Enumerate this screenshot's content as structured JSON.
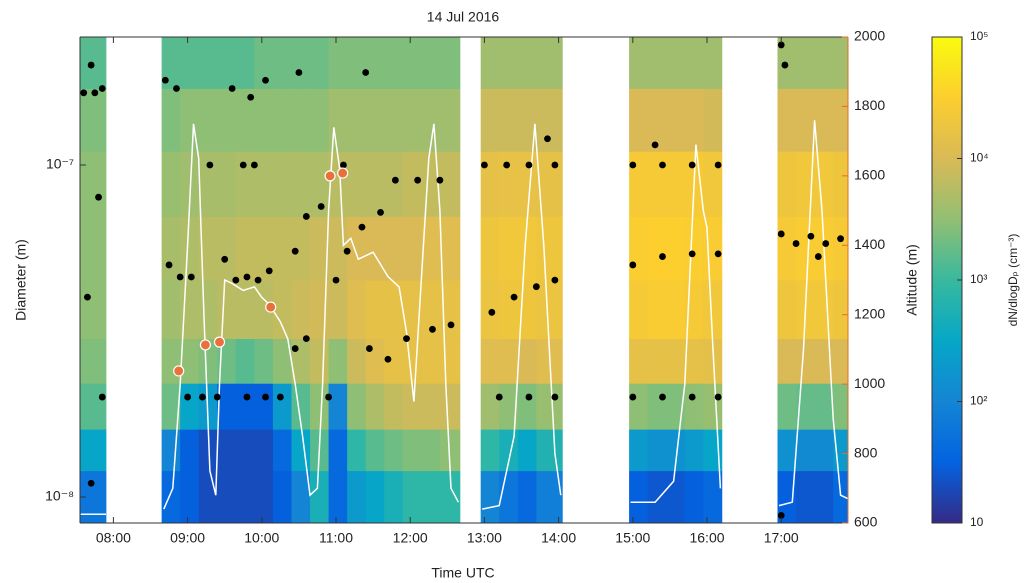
{
  "chart_data": {
    "type": "heatmap",
    "title": "14 Jul 2016",
    "xlabel": "Time UTC",
    "ylabel": "Diameter (m)",
    "y2label": "Altitude (m)",
    "colorbar_label": "dN/dlogDₚ (cm⁻³)",
    "ylabel_color": "#1e88d6",
    "y2label_color": "#e8692c",
    "xlim": [
      7.55,
      17.9
    ],
    "xticks": [
      {
        "value": 8,
        "label": "08:00"
      },
      {
        "value": 9,
        "label": "09:00"
      },
      {
        "value": 10,
        "label": "10:00"
      },
      {
        "value": 11,
        "label": "11:00"
      },
      {
        "value": 12,
        "label": "12:00"
      },
      {
        "value": 13,
        "label": "13:00"
      },
      {
        "value": 14,
        "label": "14:00"
      },
      {
        "value": 15,
        "label": "15:00"
      },
      {
        "value": 16,
        "label": "16:00"
      },
      {
        "value": 17,
        "label": "17:00"
      }
    ],
    "ylim": [
      8.35e-09,
      2.43e-07
    ],
    "y_scale": "log",
    "yticks": [
      {
        "value": 1e-08,
        "label": "10⁻⁸"
      },
      {
        "value": 1e-07,
        "label": "10⁻⁷"
      }
    ],
    "y2lim": [
      600,
      2000
    ],
    "y2ticks": [
      600,
      800,
      1000,
      1200,
      1400,
      1600,
      1800,
      2000
    ],
    "zlim": [
      10,
      100000
    ],
    "z_scale": "log",
    "zticks": [
      10,
      {
        "value": 100,
        "label": "10²"
      },
      {
        "value": 1000,
        "label": "10³"
      },
      {
        "value": 10000,
        "label": "10⁴"
      },
      {
        "value": 100000,
        "label": "10⁵"
      }
    ],
    "colormap": [
      "#352a87",
      "#0363e1",
      "#1485d4",
      "#06a7c6",
      "#38b99e",
      "#92bf73",
      "#d9ba56",
      "#fcce2e",
      "#f9fb0e"
    ],
    "x_edges": [
      7.55,
      7.9,
      8.65,
      8.9,
      9.15,
      9.4,
      9.65,
      9.9,
      10.15,
      10.4,
      10.65,
      10.9,
      11.15,
      11.4,
      11.65,
      11.9,
      12.15,
      12.4,
      12.67,
      12.95,
      13.2,
      13.45,
      13.7,
      14.05,
      14.95,
      15.2,
      15.45,
      15.7,
      15.95,
      16.2,
      16.95,
      17.2,
      17.45,
      17.7,
      17.9
    ],
    "y_edges": [
      8.35e-09,
      1.2e-08,
      1.6e-08,
      2.2e-08,
      3e-08,
      4.5e-08,
      7e-08,
      1.1e-07,
      1.7e-07,
      2.43e-07
    ],
    "z": [
      [
        60,
        300,
        1500,
        2500,
        3000,
        3000,
        3000,
        2500,
        1500
      ],
      null,
      [
        40,
        100,
        2000,
        3000,
        4000,
        4500,
        3500,
        2500,
        1500
      ],
      [
        30,
        30,
        300,
        3000,
        5000,
        5000,
        4000,
        3000,
        1500
      ],
      [
        20,
        20,
        200,
        2500,
        5000,
        6000,
        4500,
        3000,
        1500
      ],
      [
        20,
        20,
        30,
        2000,
        6000,
        6000,
        4500,
        3000,
        1500
      ],
      [
        20,
        20,
        30,
        1500,
        6000,
        7000,
        5000,
        3000,
        1500
      ],
      [
        20,
        20,
        30,
        2000,
        6000,
        7000,
        5000,
        3000,
        2000
      ],
      [
        30,
        40,
        200,
        3000,
        7000,
        7000,
        5000,
        3000,
        2000
      ],
      [
        100,
        300,
        1500,
        5000,
        8000,
        7000,
        5000,
        3000,
        2000
      ],
      [
        500,
        1500,
        3000,
        7000,
        9000,
        8000,
        5000,
        3000,
        2000
      ],
      [
        40,
        40,
        100,
        3000,
        8000,
        8000,
        6000,
        4000,
        2500
      ],
      [
        200,
        800,
        3000,
        8000,
        12000,
        10000,
        6000,
        4000,
        2500
      ],
      [
        300,
        1500,
        5000,
        12000,
        15000,
        10000,
        6000,
        4000,
        2500
      ],
      [
        500,
        2000,
        7000,
        15000,
        15000,
        10000,
        6000,
        4000,
        2500
      ],
      [
        800,
        2500,
        8000,
        15000,
        15000,
        10000,
        7000,
        4000,
        2500
      ],
      [
        800,
        2500,
        8000,
        15000,
        15000,
        12000,
        7000,
        4000,
        2500
      ],
      [
        800,
        3000,
        8000,
        15000,
        15000,
        12000,
        7000,
        4000,
        2500
      ],
      null,
      [
        100,
        800,
        4000,
        12000,
        18000,
        20000,
        15000,
        8000,
        4000
      ],
      [
        60,
        500,
        3000,
        12000,
        20000,
        22000,
        16000,
        8000,
        4000
      ],
      [
        40,
        300,
        2500,
        10000,
        20000,
        22000,
        16000,
        8000,
        4000
      ],
      [
        80,
        600,
        3500,
        12000,
        18000,
        20000,
        15000,
        8000,
        4000
      ],
      null,
      [
        30,
        200,
        3000,
        15000,
        25000,
        30000,
        25000,
        10000,
        4000
      ],
      [
        25,
        150,
        2500,
        15000,
        28000,
        32000,
        25000,
        10000,
        4000
      ],
      [
        25,
        150,
        2500,
        15000,
        28000,
        32000,
        25000,
        10000,
        4000
      ],
      [
        30,
        200,
        3000,
        15000,
        25000,
        30000,
        25000,
        10000,
        4000
      ],
      [
        40,
        300,
        3500,
        14000,
        22000,
        28000,
        22000,
        9000,
        4000
      ],
      null,
      [
        30,
        150,
        2000,
        10000,
        20000,
        25000,
        20000,
        10000,
        4000
      ],
      [
        25,
        120,
        1800,
        10000,
        22000,
        28000,
        22000,
        10000,
        4000
      ],
      [
        25,
        120,
        1800,
        10000,
        22000,
        28000,
        22000,
        10000,
        4000
      ],
      [
        40,
        200,
        2500,
        10000,
        20000,
        25000,
        20000,
        10000,
        4000
      ]
    ],
    "series": [
      {
        "type": "scatter",
        "color": "#000000",
        "x": [
          7.6,
          7.75,
          7.85,
          7.7,
          7.8,
          7.65,
          7.85,
          7.7,
          8.7,
          8.85,
          8.75,
          8.9,
          9.05,
          9.0,
          9.2,
          9.4,
          9.3,
          9.5,
          9.65,
          9.8,
          9.95,
          10.1,
          9.75,
          9.9,
          9.6,
          9.85,
          10.05,
          9.8,
          10.05,
          10.25,
          10.45,
          10.6,
          10.45,
          10.6,
          10.8,
          10.9,
          11.0,
          11.15,
          11.1,
          11.35,
          11.6,
          11.45,
          11.7,
          11.95,
          11.4,
          11.8,
          12.1,
          12.4,
          12.55,
          12.3,
          10.5,
          13.0,
          13.3,
          13.6,
          13.95,
          13.1,
          13.4,
          13.7,
          13.95,
          13.2,
          13.6,
          13.95,
          13.85,
          15.0,
          15.4,
          15.8,
          16.15,
          15.0,
          15.4,
          15.8,
          16.15,
          15.0,
          15.4,
          15.8,
          16.15,
          15.3,
          17.0,
          17.05,
          17.0,
          17.2,
          17.4,
          17.6,
          17.8,
          17.5,
          17.0
        ],
        "values": [
          1.65e-07,
          1.65e-07,
          1.7e-07,
          2e-07,
          8e-08,
          4e-08,
          2e-08,
          1.1e-08,
          1.8e-07,
          1.7e-07,
          5e-08,
          4.6e-08,
          4.6e-08,
          2e-08,
          2e-08,
          2e-08,
          1e-07,
          5.2e-08,
          4.5e-08,
          4.6e-08,
          4.5e-08,
          4.8e-08,
          1e-07,
          1e-07,
          1.7e-07,
          1.6e-07,
          1.8e-07,
          2e-08,
          2e-08,
          2e-08,
          2.8e-08,
          3e-08,
          5.5e-08,
          7e-08,
          7.5e-08,
          2e-08,
          4.5e-08,
          5.5e-08,
          1e-07,
          6.5e-08,
          7.2e-08,
          2.8e-08,
          2.6e-08,
          3e-08,
          1.9e-07,
          9e-08,
          9e-08,
          9e-08,
          3.3e-08,
          3.2e-08,
          1.9e-07,
          1e-07,
          1e-07,
          1e-07,
          1e-07,
          3.6e-08,
          4e-08,
          4.3e-08,
          4.5e-08,
          2e-08,
          2e-08,
          2e-08,
          1.2e-07,
          1e-07,
          1e-07,
          1e-07,
          1e-07,
          5e-08,
          5.3e-08,
          5.4e-08,
          5.4e-08,
          2e-08,
          2e-08,
          2e-08,
          2e-08,
          1.15e-07,
          2.3e-07,
          2e-07,
          6.2e-08,
          5.8e-08,
          6.1e-08,
          5.8e-08,
          6e-08,
          5.3e-08,
          8.8e-09
        ]
      },
      {
        "type": "line",
        "axis": "y2",
        "color": "#ffffff",
        "x": [
          7.56,
          7.9,
          null,
          8.68,
          8.8,
          8.9,
          9.0,
          9.08,
          9.15,
          9.22,
          9.3,
          9.38,
          9.43,
          9.5,
          9.6,
          9.75,
          9.9,
          10.0,
          10.1,
          10.25,
          10.35,
          10.45,
          10.55,
          10.65,
          10.75,
          10.82,
          10.9,
          10.97,
          11.05,
          11.1,
          11.2,
          11.3,
          11.5,
          11.7,
          11.85,
          11.95,
          12.05,
          12.15,
          12.25,
          12.32,
          12.4,
          12.48,
          12.55,
          12.65,
          null,
          12.97,
          13.2,
          13.4,
          13.55,
          13.68,
          13.8,
          13.95,
          14.03,
          null,
          14.97,
          15.3,
          15.55,
          15.7,
          15.85,
          15.95,
          16.0,
          16.08,
          16.18,
          null,
          16.97,
          17.15,
          17.3,
          17.45,
          17.55,
          17.7,
          17.8,
          17.9
        ],
        "values": [
          625,
          625,
          null,
          640,
          700,
          1000,
          1400,
          1750,
          1650,
          1200,
          750,
          680,
          1000,
          1300,
          1290,
          1270,
          1280,
          1250,
          1230,
          1180,
          1130,
          1000,
          850,
          680,
          700,
          1000,
          1500,
          1740,
          1620,
          1400,
          1420,
          1360,
          1380,
          1310,
          1280,
          1150,
          950,
          1300,
          1650,
          1750,
          1500,
          1000,
          700,
          660,
          null,
          640,
          650,
          850,
          1400,
          1750,
          1400,
          800,
          680,
          null,
          660,
          660,
          720,
          1000,
          1690,
          1500,
          1450,
          1100,
          700,
          null,
          650,
          660,
          1100,
          1760,
          1500,
          900,
          680,
          670
        ]
      },
      {
        "type": "scatter",
        "axis": "y2",
        "color": "#e8703a",
        "x": [
          8.88,
          9.24,
          9.43,
          10.12,
          10.92,
          11.09
        ],
        "values": [
          1038,
          1113,
          1121,
          1222,
          1600,
          1608
        ]
      }
    ]
  }
}
